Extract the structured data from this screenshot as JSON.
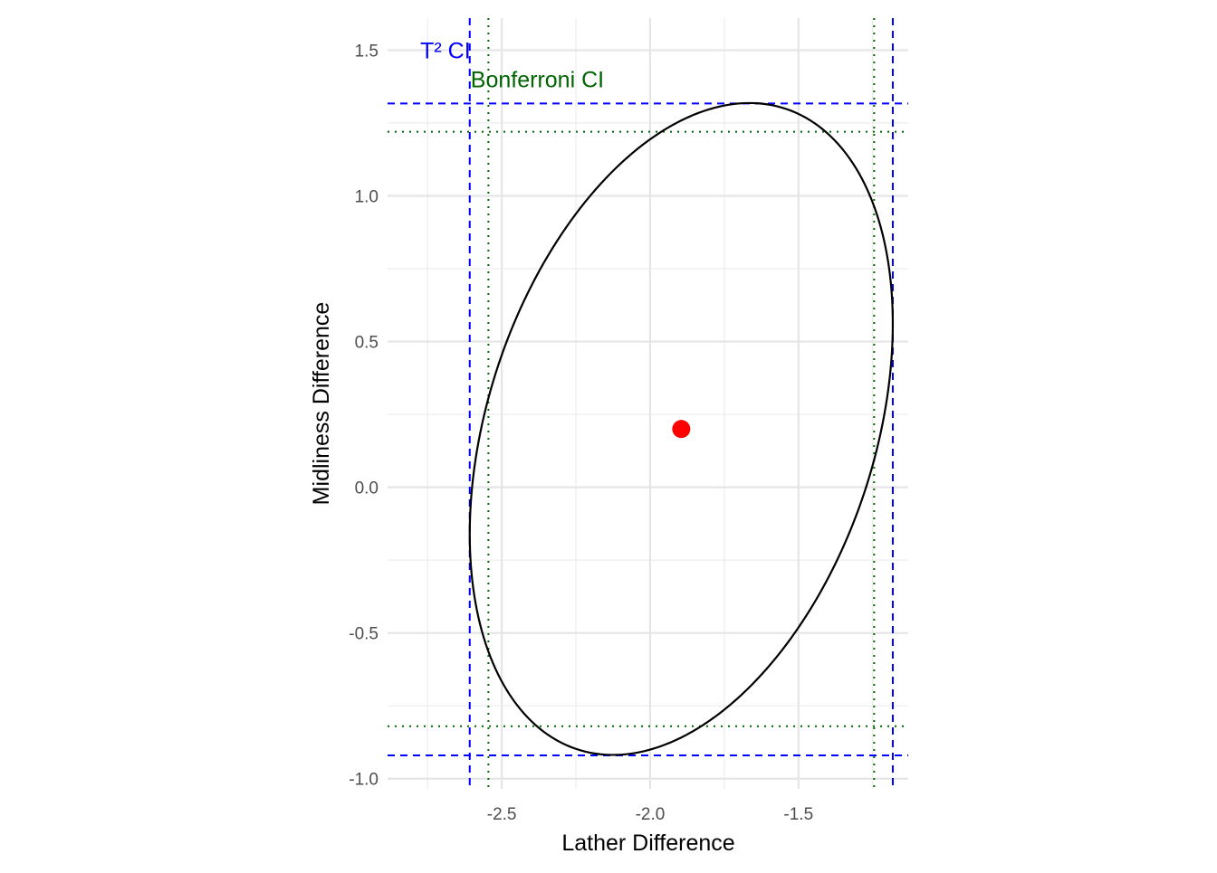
{
  "chart_data": {
    "type": "scatter",
    "title": "",
    "xlabel": "Lather Difference",
    "ylabel": "Midliness Difference",
    "xlim": [
      -2.885,
      -1.13
    ],
    "ylim": [
      -1.035,
      1.61
    ],
    "x_ticks": [
      -2.5,
      -2.0,
      -1.5
    ],
    "x_tick_labels": [
      "-2.5",
      "-2.0",
      "-1.5"
    ],
    "x_minor_ticks": [
      -2.75,
      -2.25,
      -1.75,
      -1.25
    ],
    "y_ticks": [
      -1.0,
      -0.5,
      0.0,
      0.5,
      1.0,
      1.5
    ],
    "y_tick_labels": [
      "-1.0",
      "-0.5",
      "0.0",
      "0.5",
      "1.0",
      "1.5"
    ],
    "y_minor_ticks": [
      -0.75,
      -0.25,
      0.25,
      0.75,
      1.25
    ],
    "grid": true,
    "center_point": {
      "x": -1.895,
      "y": 0.2,
      "color": "#ff0000"
    },
    "confidence_ellipse": {
      "center": {
        "x": -1.895,
        "y": 0.2
      },
      "x_range": [
        -2.608,
        -1.182
      ],
      "y_range": [
        -0.92,
        1.317
      ],
      "top_point": {
        "x": -1.665,
        "y": 1.317
      },
      "color": "#000000"
    },
    "t2_ci": {
      "x": [
        -2.608,
        -1.182
      ],
      "y": [
        -0.92,
        1.317
      ],
      "color": "#0000ff",
      "style": "dashed"
    },
    "bonferroni_ci": {
      "x": [
        -2.545,
        -1.245
      ],
      "y": [
        -0.82,
        1.22
      ],
      "color": "#006400",
      "style": "dotted"
    },
    "annotations": [
      {
        "text": "T² CI",
        "x": -2.69,
        "y": 1.5,
        "color": "#0000ff"
      },
      {
        "text": "Bonferroni CI",
        "x": -2.38,
        "y": 1.4,
        "color": "#006400"
      }
    ]
  }
}
